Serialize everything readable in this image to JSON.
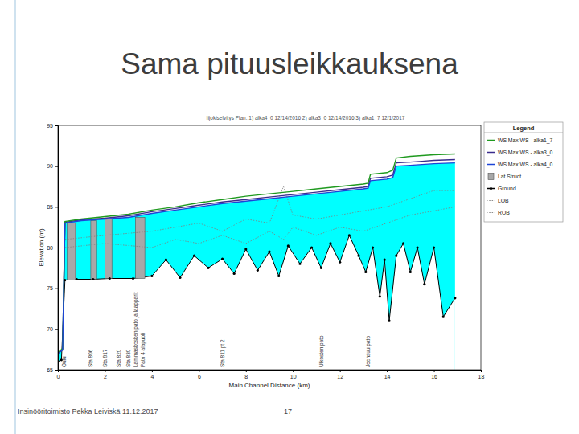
{
  "slide": {
    "title": "Sama pituusleikkauksena",
    "footer": "Insinööritoimisto Pekka Leiviskä 11.12.2017",
    "page": "17"
  },
  "chart_data": {
    "type": "line",
    "title": "Iijokiselvitys   Plan: 1) alka4_0  12/14/2016   2) alka3_0  12/14/2016   3) alka1_7  12/1/2017",
    "x_label": "Main Channel Distance (km)",
    "y_label": "Elevation (m)",
    "legend_title": "Legend",
    "legend": "right",
    "grid": false,
    "xlim": [
      0,
      18
    ],
    "ylim": [
      65,
      95
    ],
    "xticks": [
      0,
      2,
      4,
      6,
      8,
      10,
      12,
      14,
      16,
      18
    ],
    "yticks": [
      65,
      70,
      75,
      80,
      85,
      90,
      95
    ],
    "series": [
      {
        "name": "WS  Max WS - alka1_7",
        "type": "line",
        "color": "#1f9a1f",
        "x": [
          0,
          0.2,
          0.3,
          1,
          2,
          3,
          4,
          5,
          6,
          7,
          8,
          9,
          10,
          11,
          12,
          13,
          13.2,
          13.3,
          14.0,
          14.25,
          14.4,
          15,
          15.5,
          16,
          16.9
        ],
        "values": [
          67.1,
          67.6,
          83.2,
          83.5,
          83.8,
          84.1,
          84.6,
          85.0,
          85.5,
          85.9,
          86.3,
          86.6,
          86.9,
          87.2,
          87.5,
          87.8,
          87.9,
          89.0,
          89.2,
          89.5,
          91.0,
          91.2,
          91.3,
          91.4,
          91.5
        ]
      },
      {
        "name": "WS  Max WS - alka3_0",
        "type": "line",
        "color": "#3b2c8c",
        "x": [
          0,
          0.2,
          0.3,
          1,
          2,
          3,
          4,
          5,
          6,
          7,
          8,
          9,
          10,
          11,
          12,
          13,
          13.2,
          13.3,
          14.0,
          14.25,
          14.4,
          15,
          15.5,
          16,
          16.9
        ],
        "values": [
          67.0,
          67.5,
          83.1,
          83.4,
          83.6,
          83.9,
          84.4,
          84.8,
          85.2,
          85.6,
          85.9,
          86.2,
          86.5,
          86.8,
          87.1,
          87.4,
          87.5,
          88.5,
          88.7,
          88.9,
          90.4,
          90.5,
          90.6,
          90.7,
          90.8
        ]
      },
      {
        "name": "WS  Max WS - alka4_0",
        "type": "area",
        "color": "#1d44d6",
        "x": [
          0,
          0.2,
          0.3,
          1,
          2,
          3,
          4,
          5,
          6,
          7,
          8,
          9,
          10,
          11,
          12,
          13,
          13.2,
          13.3,
          14.0,
          14.25,
          14.4,
          15,
          15.5,
          16,
          16.9
        ],
        "values": [
          67.0,
          67.4,
          83.0,
          83.3,
          83.5,
          83.7,
          84.2,
          84.6,
          85.0,
          85.4,
          85.7,
          86.0,
          86.3,
          86.6,
          86.9,
          87.2,
          87.3,
          88.2,
          88.4,
          88.6,
          90.0,
          90.1,
          90.2,
          90.3,
          90.4
        ]
      },
      {
        "name": "Lat Struct",
        "type": "structure",
        "color": "#a8a8a8",
        "x": [
          0.4,
          1.4,
          2.0,
          3.3
        ],
        "x_end": [
          0.75,
          1.65,
          2.3,
          3.7
        ],
        "values": [
          83.0,
          83.3,
          83.5,
          83.7
        ],
        "bottom": [
          76.0,
          76.1,
          76.2,
          76.2
        ]
      },
      {
        "name": "Ground",
        "type": "ground",
        "color": "#000000",
        "marker": "circle",
        "x": [
          0,
          0.15,
          0.3,
          0.8,
          1.5,
          2.2,
          3.2,
          4.0,
          4.6,
          5.2,
          5.8,
          6.4,
          7.0,
          7.5,
          8.0,
          8.5,
          9.0,
          9.4,
          9.8,
          10.3,
          10.8,
          11.2,
          11.6,
          12.0,
          12.4,
          12.8,
          13.1,
          13.4,
          13.7,
          13.9,
          14.1,
          14.4,
          14.7,
          15.0,
          15.3,
          15.6,
          16.0,
          16.4,
          16.9
        ],
        "values": [
          66.0,
          66.2,
          76.0,
          76.1,
          76.1,
          76.2,
          76.2,
          76.5,
          78.5,
          76.3,
          79.0,
          77.5,
          78.6,
          76.8,
          79.8,
          77.2,
          79.5,
          76.5,
          80.2,
          78.0,
          80.0,
          77.5,
          80.5,
          78.2,
          81.5,
          79.0,
          77.0,
          80.0,
          74.0,
          78.5,
          71.0,
          79.0,
          80.5,
          77.0,
          80.0,
          75.5,
          80.0,
          71.5,
          73.8
        ]
      },
      {
        "name": "LOB",
        "type": "line",
        "color": "#7f7f7f",
        "line_style": "dotted",
        "x": [
          0.3,
          2,
          4,
          5,
          6,
          7,
          8,
          9,
          9.6,
          10,
          11,
          12,
          13,
          14,
          15,
          16,
          16.9
        ],
        "values": [
          81,
          81.5,
          82,
          82.5,
          83,
          82,
          83.5,
          83,
          87.5,
          84,
          83.5,
          84,
          84.5,
          85,
          86,
          87,
          87
        ]
      },
      {
        "name": "ROB",
        "type": "line",
        "color": "#7f7f7f",
        "line_style": "dotted",
        "x": [
          0.3,
          2,
          4,
          5,
          6,
          7,
          8,
          9,
          9.6,
          10,
          11,
          12,
          13,
          14,
          15,
          16,
          16.9
        ],
        "values": [
          80,
          80.5,
          80,
          81,
          80.5,
          81.5,
          80.5,
          82,
          81,
          82.5,
          81.5,
          82.5,
          82,
          83,
          84,
          84.5,
          85
        ]
      }
    ],
    "annotations": [
      {
        "x": 0.25,
        "text": "Oulu"
      },
      {
        "x": 1.4,
        "text": "Sta 806"
      },
      {
        "x": 2.0,
        "text": "Sta 817"
      },
      {
        "x": 2.6,
        "text": "Sta 820"
      },
      {
        "x": 3.0,
        "text": "Sta 830"
      },
      {
        "x": 3.3,
        "text": "Lammaskosken pato ja laapparit"
      },
      {
        "x": 3.6,
        "text": "Pato 4 alapuoli"
      },
      {
        "x": 7.0,
        "text": "Sta 811 pt 2"
      },
      {
        "x": 11.2,
        "text": "Ulkosten pato"
      },
      {
        "x": 13.2,
        "text": "Joensuu pato"
      }
    ]
  }
}
